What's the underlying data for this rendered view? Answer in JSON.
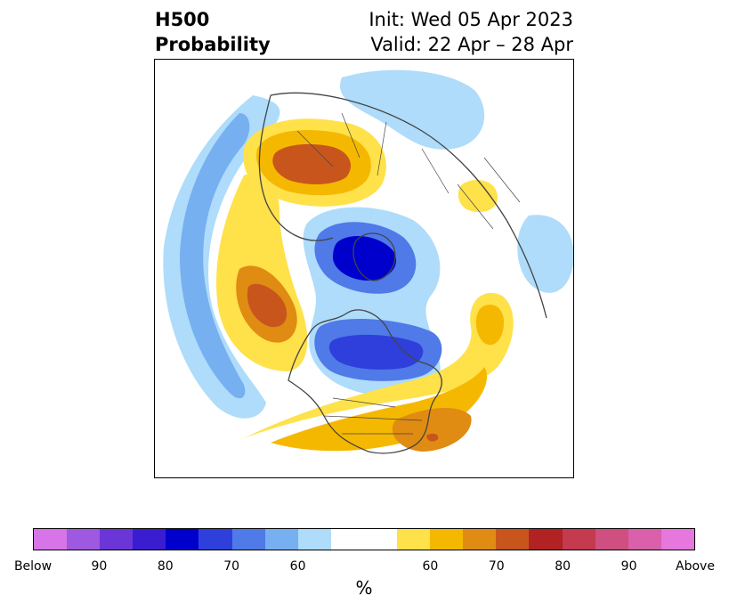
{
  "title": {
    "left_line1": "H500",
    "left_line2": "Probability",
    "right_line1": "Init: Wed 05 Apr 2023",
    "right_line2": "Valid: 22 Apr – 28 Apr"
  },
  "colorbar": {
    "colors": [
      "#d674e8",
      "#9f58e0",
      "#6b36d8",
      "#3a1dd0",
      "#0000cc",
      "#2e3fdc",
      "#4f7ae8",
      "#76b0f0",
      "#aedcfa",
      "#ffffff",
      "#ffffff",
      "#ffe14a",
      "#f5b800",
      "#e08b12",
      "#c8561c",
      "#b22222",
      "#c43a4e",
      "#cf5080",
      "#da60ab",
      "#e677dd"
    ],
    "tick_labels": [
      "Below",
      "90",
      "80",
      "70",
      "60",
      "60",
      "70",
      "80",
      "90",
      "Above"
    ],
    "unit": "%"
  },
  "legend_colors": {
    "blue_light": "#aedcfa",
    "blue_mid": "#76b0f0",
    "blue_strong": "#4f7ae8",
    "blue_deep": "#2e3fdc",
    "blue_max": "#0000cc",
    "yellow": "#ffe14a",
    "orange_light": "#f5b800",
    "orange": "#e08b12",
    "orange_dark": "#c8561c",
    "red": "#b22222"
  }
}
